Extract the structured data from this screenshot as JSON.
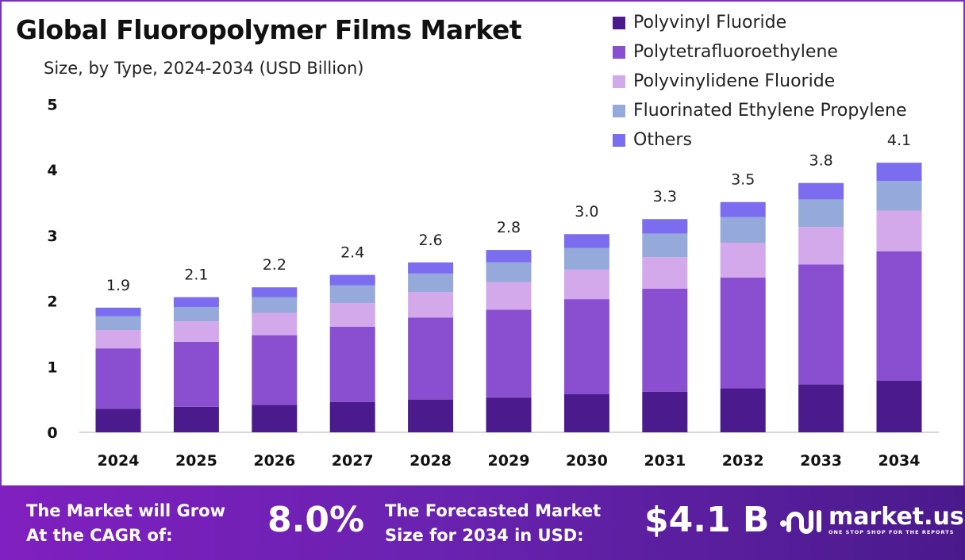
{
  "chart_data": {
    "type": "stacked-bar",
    "title": "Global Fluoropolymer Films Market",
    "subtitle": "Size, by Type, 2024-2034 (USD Billion)",
    "categories": [
      "2024",
      "2025",
      "2026",
      "2027",
      "2028",
      "2029",
      "2030",
      "2031",
      "2032",
      "2033",
      "2034"
    ],
    "ylim": [
      0,
      5
    ],
    "yticks": [
      0,
      1,
      2,
      3,
      4,
      5
    ],
    "grid": false,
    "legend_position": "top-right",
    "series": [
      {
        "name": "Polyvinyl Fluoride",
        "color": "#4b1a8c",
        "values": [
          0.36,
          0.39,
          0.42,
          0.46,
          0.5,
          0.53,
          0.58,
          0.62,
          0.67,
          0.73,
          0.79
        ]
      },
      {
        "name": "Polytetrafluoroethylene",
        "color": "#8a4fd0",
        "values": [
          0.92,
          0.99,
          1.06,
          1.15,
          1.25,
          1.34,
          1.45,
          1.57,
          1.69,
          1.83,
          1.97
        ]
      },
      {
        "name": "Polyvinylidene Fluoride",
        "color": "#d3a9ec",
        "values": [
          0.28,
          0.31,
          0.34,
          0.36,
          0.39,
          0.42,
          0.45,
          0.48,
          0.53,
          0.57,
          0.62
        ]
      },
      {
        "name": "Fluorinated Ethylene Propylene",
        "color": "#95a9da",
        "values": [
          0.21,
          0.22,
          0.24,
          0.27,
          0.28,
          0.3,
          0.33,
          0.36,
          0.39,
          0.42,
          0.45
        ]
      },
      {
        "name": "Others",
        "color": "#7b6cf0",
        "values": [
          0.13,
          0.15,
          0.15,
          0.16,
          0.17,
          0.19,
          0.21,
          0.22,
          0.23,
          0.25,
          0.28
        ]
      }
    ],
    "totals": [
      "1.9",
      "2.1",
      "2.2",
      "2.4",
      "2.6",
      "2.8",
      "3.0",
      "3.3",
      "3.5",
      "3.8",
      "4.1"
    ]
  },
  "footer": {
    "cagr_label": [
      "The Market will Grow",
      "At the CAGR of:"
    ],
    "cagr_value": "8.0%",
    "forecast_label": [
      "The Forecasted Market",
      "Size for 2034 in USD:"
    ],
    "forecast_value": "$4.1 B",
    "brand": "market.us",
    "tagline": "ONE STOP SHOP FOR THE REPORTS"
  }
}
